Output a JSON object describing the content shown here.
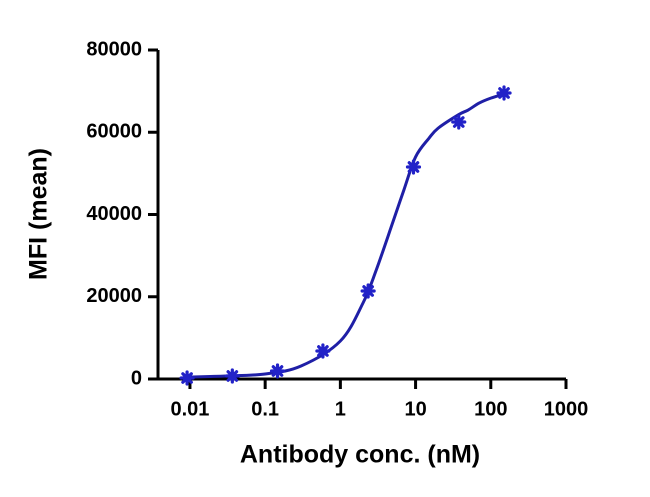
{
  "chart_data": {
    "type": "scatter",
    "xlabel": "Antibody conc. (nM)",
    "ylabel": "MFI (mean)",
    "xscale": "log",
    "xlim": [
      0.00376,
      1000
    ],
    "xticks": [
      0.01,
      0.1,
      1,
      10,
      100,
      1000
    ],
    "ylim": [
      0,
      80000
    ],
    "yticks": [
      0,
      20000,
      40000,
      60000,
      80000
    ],
    "series": [
      {
        "kind": "points",
        "color": "#2222c8",
        "x": [
          0.00916,
          0.0366,
          0.146,
          0.586,
          2.34,
          9.375,
          37.5,
          150
        ],
        "values": [
          240,
          730,
          1950,
          6810,
          21400,
          51550,
          62490,
          69550
        ]
      },
      {
        "kind": "curve",
        "color": "#1f1fa6",
        "x": [
          0.01,
          0.03,
          0.1,
          0.3,
          1,
          2,
          3,
          5,
          7,
          10,
          15,
          20,
          37.5,
          50,
          70,
          100,
          150
        ],
        "values": [
          490,
          730,
          1220,
          3160,
          9240,
          18480,
          26500,
          38200,
          46000,
          54000,
          58500,
          61000,
          64300,
          65400,
          67100,
          68300,
          69300
        ]
      }
    ]
  }
}
